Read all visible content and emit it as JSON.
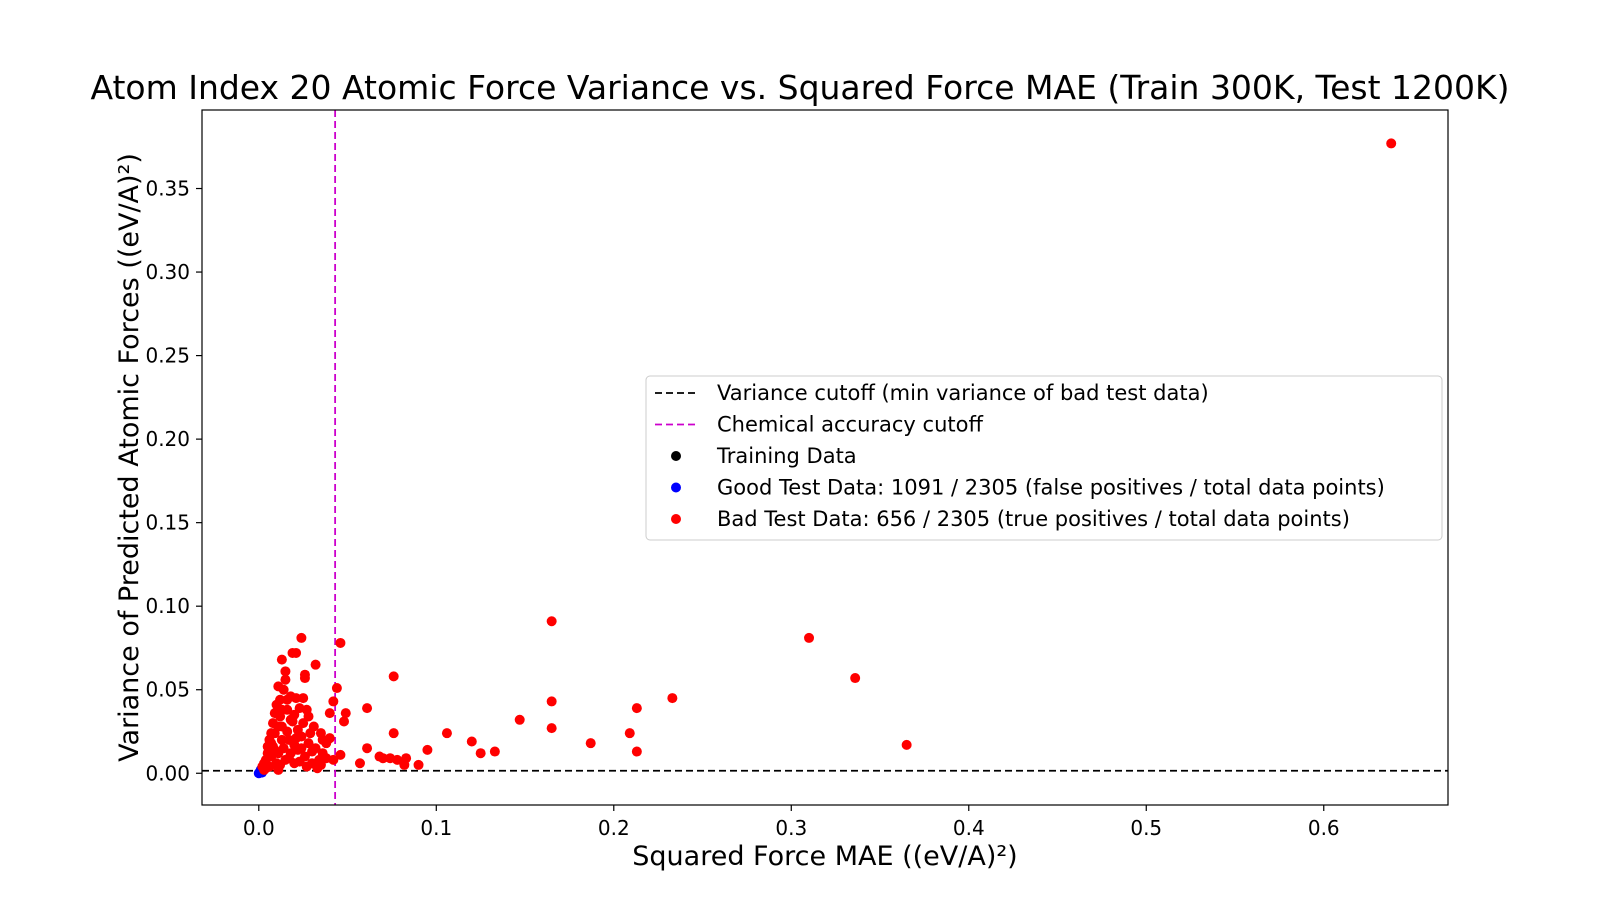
{
  "chart_data": {
    "type": "scatter",
    "title": "Atom Index 20 Atomic Force Variance vs. Squared Force MAE (Train 300K, Test 1200K)",
    "xlabel": "Squared Force MAE ((eV/A)²)",
    "ylabel": "Variance of Predicted Atomic Forces ((eV/A)²)",
    "xlim": [
      -0.032,
      0.67
    ],
    "ylim": [
      -0.019,
      0.397
    ],
    "x_ticks": [
      "0.0",
      "0.1",
      "0.2",
      "0.3",
      "0.4",
      "0.5",
      "0.6"
    ],
    "y_ticks": [
      "0.00",
      "0.05",
      "0.10",
      "0.15",
      "0.20",
      "0.25",
      "0.30",
      "0.35"
    ],
    "grid": false,
    "legend_position": "center-right",
    "reference_lines": [
      {
        "name": "Variance cutoff (min variance of bad test data)",
        "orientation": "horizontal",
        "value": 0.0015,
        "color": "#000000",
        "style": "dashed"
      },
      {
        "name": "Chemical accuracy cutoff",
        "orientation": "vertical",
        "value": 0.043,
        "color": "#cc00cc",
        "style": "dashed"
      }
    ],
    "series": [
      {
        "name": "Training Data",
        "color": "#000000",
        "points": []
      },
      {
        "name": "Good Test Data: 1091 / 2305 (false positives / total data points)",
        "color": "#0000ff",
        "points": [
          [
            0.0,
            0.0
          ],
          [
            0.0005,
            0.0005
          ],
          [
            0.001,
            0.0015
          ],
          [
            0.0015,
            0.002
          ],
          [
            0.002,
            0.0025
          ],
          [
            0.0025,
            0.003
          ],
          [
            0.001,
            0.0008
          ],
          [
            0.0008,
            0.0012
          ],
          [
            0.0003,
            0.0002
          ],
          [
            0.0012,
            0.0022
          ],
          [
            0.002,
            0.001
          ],
          [
            0.0018,
            0.0004
          ]
        ]
      },
      {
        "name": "Bad Test Data: 656 / 2305 (true positives / total data points)",
        "color": "#ff0000",
        "points": [
          [
            0.638,
            0.377
          ],
          [
            0.165,
            0.091
          ],
          [
            0.31,
            0.081
          ],
          [
            0.336,
            0.057
          ],
          [
            0.365,
            0.017
          ],
          [
            0.233,
            0.045
          ],
          [
            0.213,
            0.039
          ],
          [
            0.165,
            0.043
          ],
          [
            0.165,
            0.027
          ],
          [
            0.209,
            0.024
          ],
          [
            0.213,
            0.013
          ],
          [
            0.187,
            0.018
          ],
          [
            0.147,
            0.032
          ],
          [
            0.133,
            0.013
          ],
          [
            0.125,
            0.012
          ],
          [
            0.12,
            0.019
          ],
          [
            0.106,
            0.024
          ],
          [
            0.095,
            0.014
          ],
          [
            0.09,
            0.005
          ],
          [
            0.083,
            0.009
          ],
          [
            0.082,
            0.005
          ],
          [
            0.078,
            0.008
          ],
          [
            0.076,
            0.058
          ],
          [
            0.076,
            0.024
          ],
          [
            0.074,
            0.009
          ],
          [
            0.07,
            0.009
          ],
          [
            0.068,
            0.01
          ],
          [
            0.061,
            0.039
          ],
          [
            0.061,
            0.015
          ],
          [
            0.057,
            0.006
          ],
          [
            0.049,
            0.036
          ],
          [
            0.048,
            0.031
          ],
          [
            0.046,
            0.078
          ],
          [
            0.046,
            0.011
          ],
          [
            0.044,
            0.051
          ],
          [
            0.042,
            0.043
          ],
          [
            0.04,
            0.036
          ],
          [
            0.04,
            0.021
          ],
          [
            0.038,
            0.009
          ],
          [
            0.036,
            0.02
          ],
          [
            0.035,
            0.005
          ],
          [
            0.032,
            0.065
          ],
          [
            0.031,
            0.028
          ],
          [
            0.03,
            0.013
          ],
          [
            0.028,
            0.034
          ],
          [
            0.026,
            0.057
          ],
          [
            0.026,
            0.059
          ],
          [
            0.024,
            0.081
          ],
          [
            0.023,
            0.039
          ],
          [
            0.022,
            0.026
          ],
          [
            0.021,
            0.072
          ],
          [
            0.02,
            0.017
          ],
          [
            0.019,
            0.072
          ],
          [
            0.018,
            0.046
          ],
          [
            0.018,
            0.032
          ],
          [
            0.017,
            0.009
          ],
          [
            0.016,
            0.038
          ],
          [
            0.015,
            0.061
          ],
          [
            0.015,
            0.056
          ],
          [
            0.014,
            0.05
          ],
          [
            0.013,
            0.068
          ],
          [
            0.013,
            0.02
          ],
          [
            0.012,
            0.044
          ],
          [
            0.012,
            0.034
          ],
          [
            0.011,
            0.052
          ],
          [
            0.011,
            0.028
          ],
          [
            0.011,
            0.012
          ],
          [
            0.01,
            0.041
          ],
          [
            0.01,
            0.006
          ],
          [
            0.009,
            0.036
          ],
          [
            0.009,
            0.024
          ],
          [
            0.008,
            0.03
          ],
          [
            0.008,
            0.016
          ],
          [
            0.007,
            0.024
          ],
          [
            0.007,
            0.01
          ],
          [
            0.006,
            0.02
          ],
          [
            0.006,
            0.004
          ],
          [
            0.005,
            0.016
          ],
          [
            0.005,
            0.012
          ],
          [
            0.004,
            0.008
          ],
          [
            0.004,
            0.003
          ],
          [
            0.003,
            0.006
          ],
          [
            0.003,
            0.002
          ],
          [
            0.002,
            0.004
          ],
          [
            0.012,
            0.005
          ],
          [
            0.014,
            0.015
          ],
          [
            0.016,
            0.025
          ],
          [
            0.018,
            0.012
          ],
          [
            0.02,
            0.006
          ],
          [
            0.022,
            0.014
          ],
          [
            0.024,
            0.022
          ],
          [
            0.026,
            0.01
          ],
          [
            0.028,
            0.018
          ],
          [
            0.03,
            0.006
          ],
          [
            0.032,
            0.015
          ],
          [
            0.034,
            0.008
          ],
          [
            0.036,
            0.012
          ],
          [
            0.038,
            0.018
          ],
          [
            0.042,
            0.008
          ],
          [
            0.019,
            0.031
          ],
          [
            0.021,
            0.045
          ],
          [
            0.023,
            0.007
          ],
          [
            0.025,
            0.03
          ],
          [
            0.027,
            0.004
          ],
          [
            0.017,
            0.02
          ],
          [
            0.015,
            0.008
          ],
          [
            0.013,
            0.028
          ],
          [
            0.009,
            0.014
          ],
          [
            0.007,
            0.018
          ],
          [
            0.011,
            0.002
          ],
          [
            0.02,
            0.035
          ],
          [
            0.024,
            0.015
          ],
          [
            0.035,
            0.024
          ],
          [
            0.029,
            0.024
          ],
          [
            0.033,
            0.003
          ],
          [
            0.013,
            0.038
          ],
          [
            0.016,
            0.044
          ],
          [
            0.021,
            0.021
          ],
          [
            0.025,
            0.045
          ],
          [
            0.027,
            0.038
          ]
        ]
      }
    ]
  },
  "legend": {
    "entries": [
      "Variance cutoff (min variance of bad test data)",
      "Chemical accuracy cutoff",
      "Training Data",
      "Good Test Data: 1091 / 2305 (false positives / total data points)",
      "Bad Test Data: 656 / 2305 (true positives / total data points)"
    ]
  }
}
